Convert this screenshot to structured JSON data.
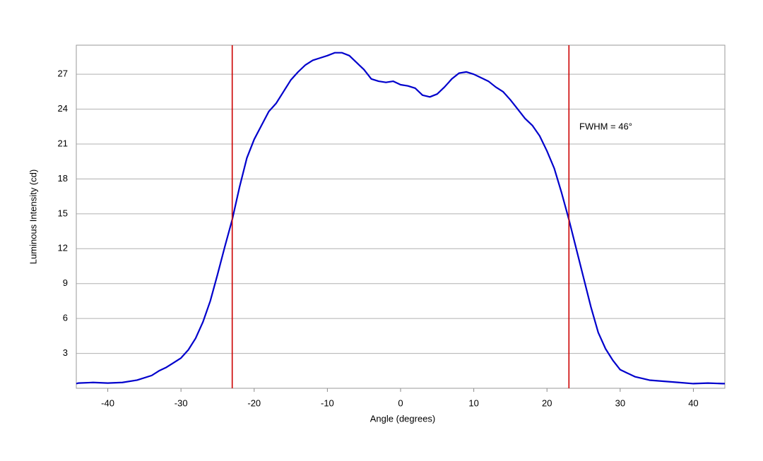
{
  "chart_data": {
    "type": "line",
    "xlabel": "Angle (degrees)",
    "ylabel": "Luminous Intensity (cd)",
    "x": [
      -44.3,
      -44,
      -42,
      -40,
      -38,
      -36,
      -34,
      -33,
      -32,
      -31,
      -30,
      -29,
      -28,
      -27,
      -26,
      -25,
      -24,
      -23,
      -22,
      -21,
      -20,
      -19,
      -18,
      -17,
      -16,
      -15,
      -14,
      -13,
      -12,
      -11,
      -10,
      -9,
      -8,
      -7,
      -6,
      -5,
      -4,
      -3,
      -2,
      -1,
      0,
      1,
      2,
      3,
      4,
      5,
      6,
      7,
      8,
      9,
      10,
      11,
      12,
      13,
      14,
      15,
      16,
      17,
      18,
      19,
      20,
      21,
      22,
      23,
      24,
      25,
      26,
      27,
      28,
      29,
      30,
      31,
      32,
      34,
      36,
      38,
      40,
      42,
      44,
      44.3
    ],
    "values": [
      0.4,
      0.45,
      0.5,
      0.45,
      0.5,
      0.7,
      1.1,
      1.5,
      1.8,
      2.2,
      2.6,
      3.3,
      4.3,
      5.7,
      7.5,
      9.8,
      12.2,
      14.5,
      17.3,
      19.8,
      21.4,
      22.6,
      23.8,
      24.5,
      25.5,
      26.5,
      27.2,
      27.8,
      28.2,
      28.4,
      28.6,
      28.85,
      28.85,
      28.6,
      28.0,
      27.4,
      26.6,
      26.4,
      26.3,
      26.4,
      26.1,
      26.0,
      25.8,
      25.2,
      25.05,
      25.3,
      25.9,
      26.6,
      27.1,
      27.2,
      27.0,
      26.7,
      26.4,
      25.9,
      25.5,
      24.8,
      24.0,
      23.2,
      22.6,
      21.7,
      20.4,
      18.9,
      16.8,
      14.5,
      12.0,
      9.5,
      7.0,
      4.8,
      3.4,
      2.4,
      1.6,
      1.3,
      1.0,
      0.7,
      0.6,
      0.5,
      0.4,
      0.45,
      0.4,
      0.4
    ],
    "color": "#0000cc",
    "xlim": [
      -44.3,
      44.3
    ],
    "ylim": [
      0,
      29.5
    ],
    "xticks": [
      -40,
      -30,
      -20,
      -10,
      0,
      10,
      20,
      30,
      40
    ],
    "yticks": [
      3,
      6,
      9,
      12,
      15,
      18,
      21,
      24,
      27
    ],
    "grid": true,
    "vlines": [
      -23,
      23
    ],
    "vline_color": "#cc0000",
    "annotation": "FWHM = 46°"
  }
}
